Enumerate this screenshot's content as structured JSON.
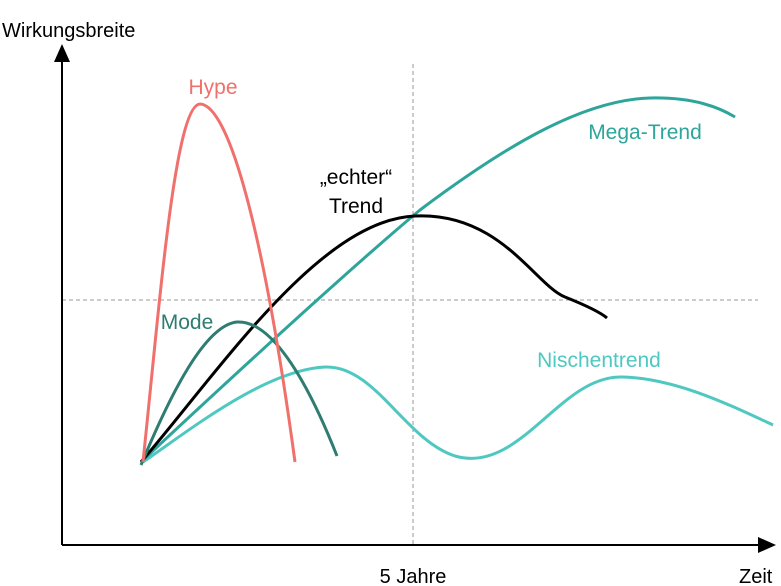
{
  "axes": {
    "y_label": "Wirkungsbreite",
    "x_label": "Zeit",
    "x_marker_label": "5 Jahre"
  },
  "curves": {
    "hype": {
      "label": "Hype",
      "color": "#f0706c"
    },
    "mode": {
      "label": "Mode",
      "color": "#2e7c72"
    },
    "echter_trend": {
      "label_line1": "„echter“",
      "label_line2": "Trend",
      "color": "#000000"
    },
    "mega_trend": {
      "label": "Mega-Trend",
      "color": "#2ea59b"
    },
    "nischentrend": {
      "label": "Nischentrend",
      "color": "#4ec8c0"
    }
  },
  "guides": {
    "color": "#999999"
  }
}
